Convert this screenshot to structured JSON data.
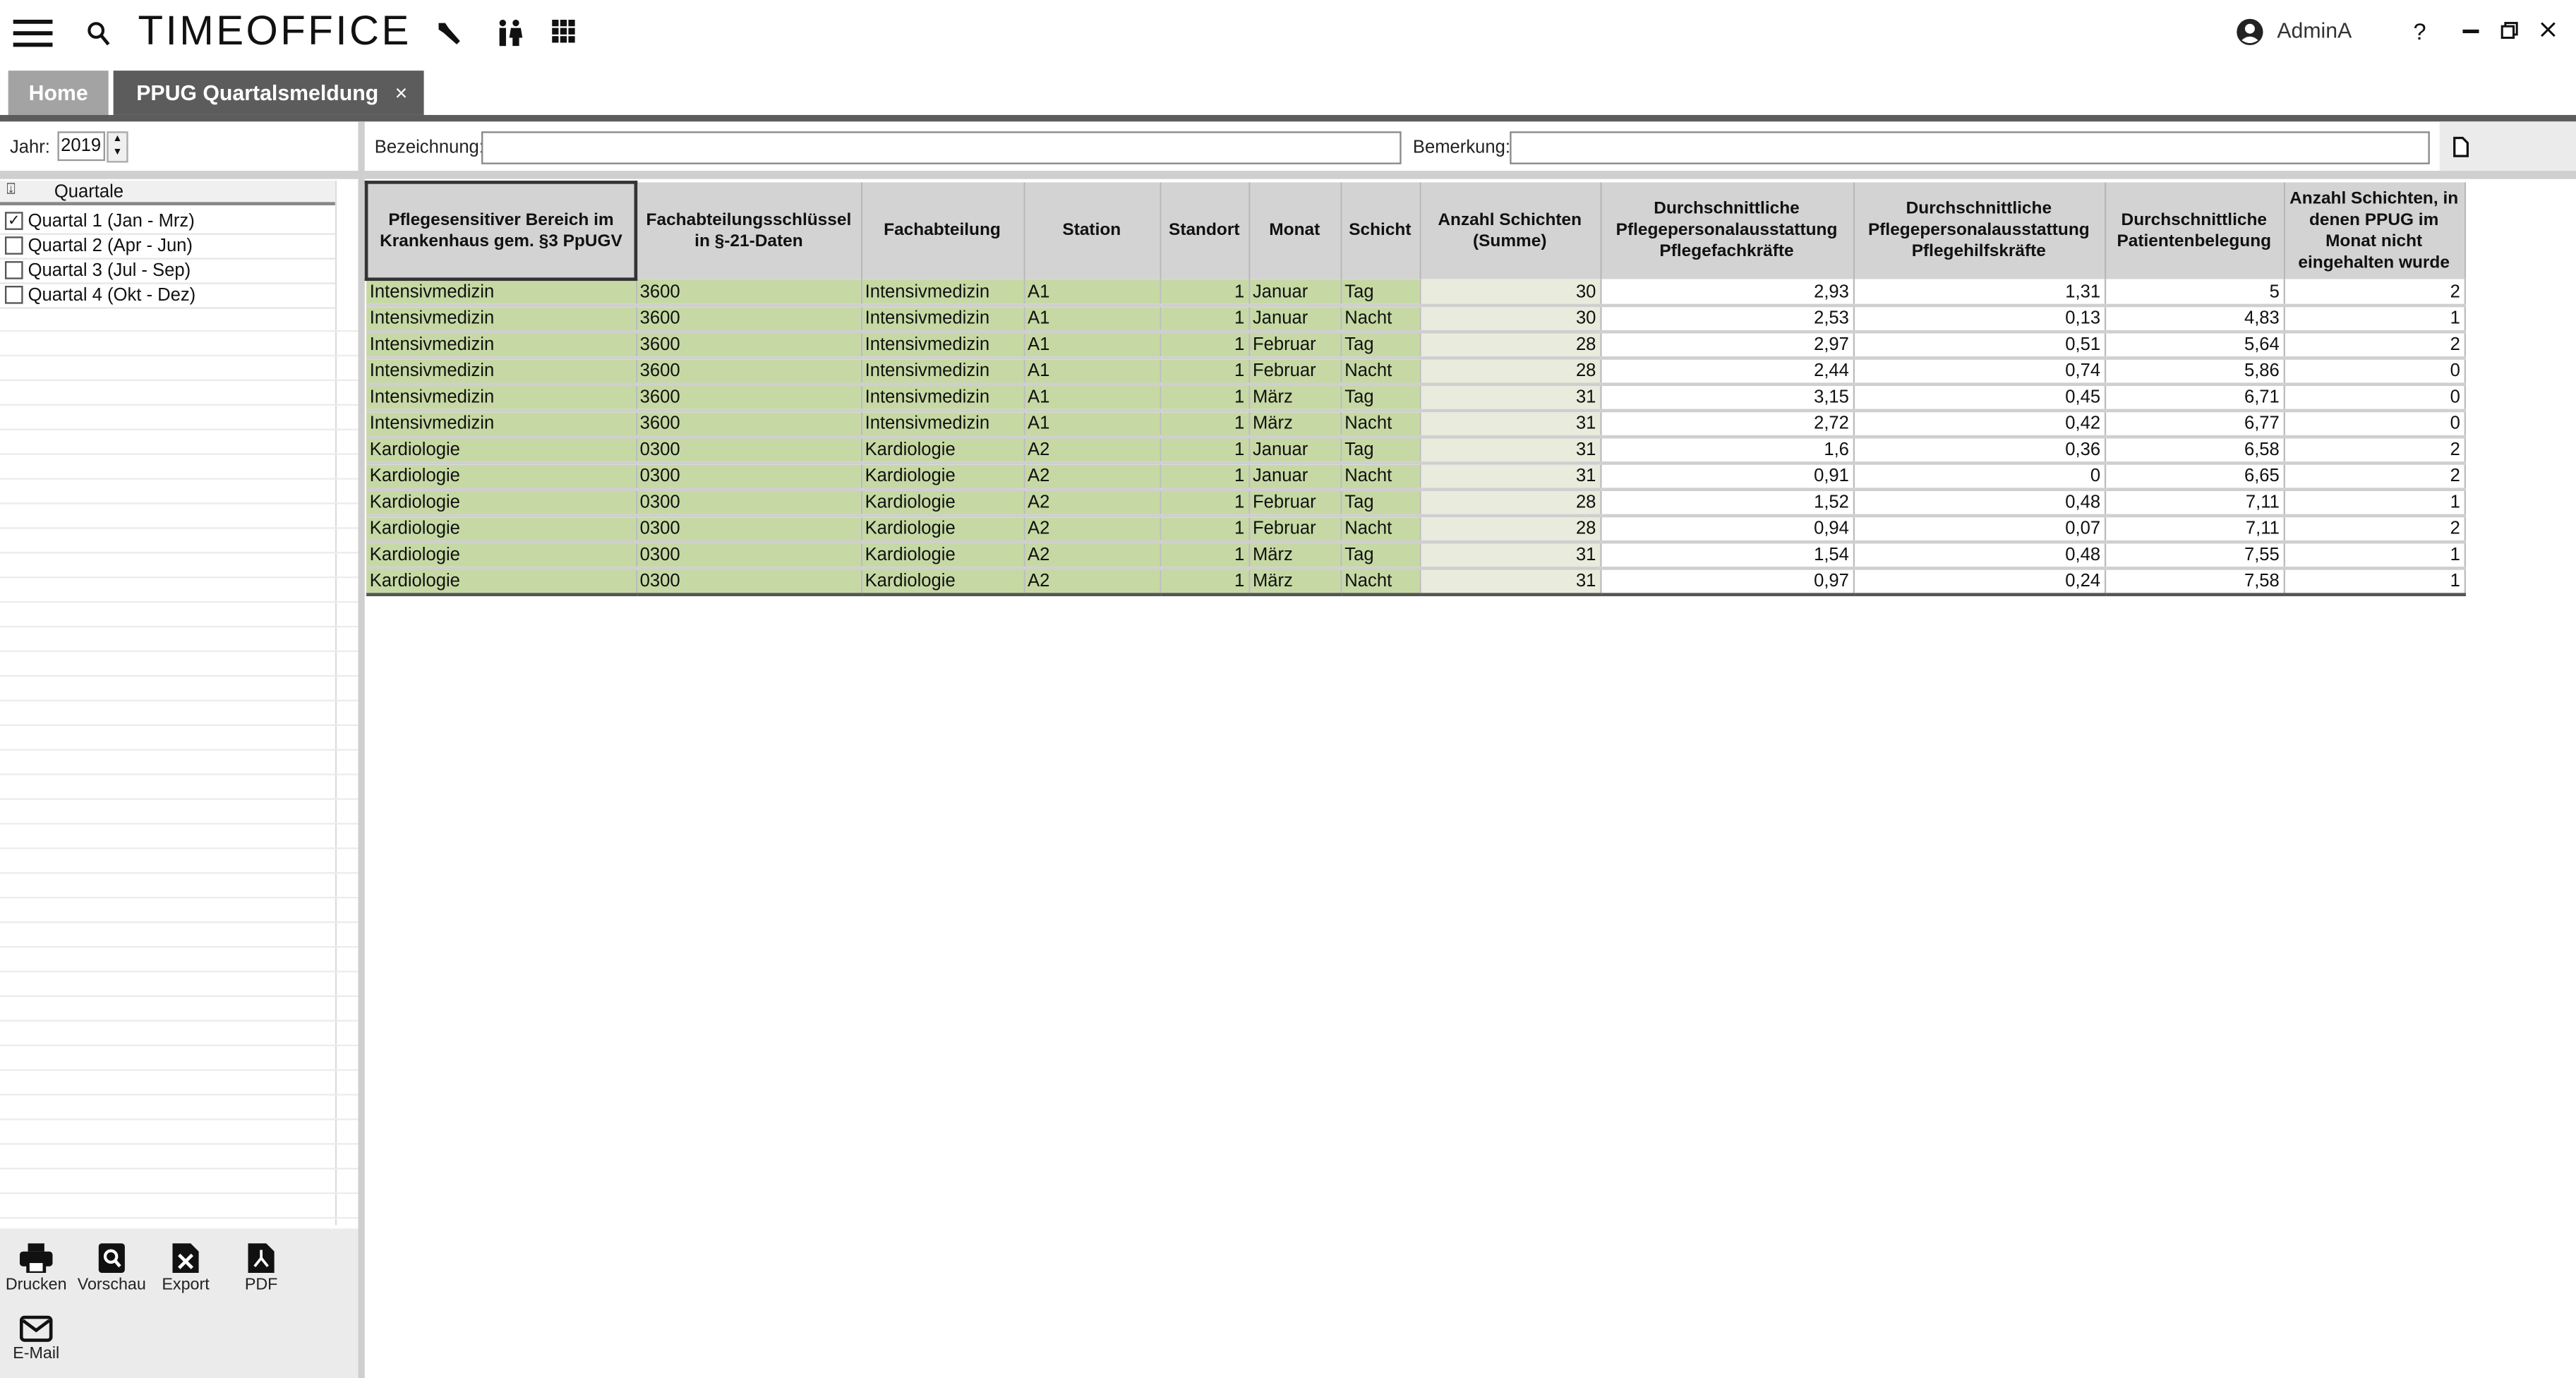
{
  "app": {
    "logo": "TIMEOFFICE",
    "user": "AdminA",
    "help": "?"
  },
  "tabs": [
    {
      "label": "Home"
    },
    {
      "label": "PPUG Quartalsmeldung",
      "close": "×"
    }
  ],
  "filter": {
    "year_label": "Jahr:",
    "year_value": "2019"
  },
  "quartale": {
    "header": "Quartale",
    "items": [
      {
        "label": "Quartal 1 (Jan - Mrz)",
        "checked": true
      },
      {
        "label": "Quartal 2 (Apr - Jun)",
        "checked": false
      },
      {
        "label": "Quartal 3 (Jul - Sep)",
        "checked": false
      },
      {
        "label": "Quartal 4 (Okt - Dez)",
        "checked": false
      }
    ]
  },
  "form": {
    "bezeichnung_label": "Bezeichnung:",
    "bezeichnung_value": "",
    "bemerkung_label": "Bemerkung:",
    "bemerkung_value": ""
  },
  "toolbar": {
    "drucken": "Drucken",
    "vorschau": "Vorschau",
    "export": "Export",
    "pdf": "PDF",
    "email": "E-Mail"
  },
  "table": {
    "columns": [
      "Pflegesensitiver Bereich im Krankenhaus gem. §3 PpUGV",
      "Fachabteilungsschlüssel in §-21-Daten",
      "Fachabteilung",
      "Station",
      "Standort",
      "Monat",
      "Schicht",
      "Anzahl Schichten (Summe)",
      "Durchschnittliche Pflegepersonalausstattung Pflegefachkräfte",
      "Durchschnittliche Pflegepersonalausstattung Pflegehilfskräfte",
      "Durchschnittliche Patientenbelegung",
      "Anzahl Schichten, in denen PPUG im Monat nicht eingehalten wurde"
    ],
    "rows": [
      [
        "Intensivmedizin",
        "3600",
        "Intensivmedizin",
        "A1",
        "1",
        "Januar",
        "Tag",
        "30",
        "2,93",
        "1,31",
        "5",
        "2"
      ],
      [
        "Intensivmedizin",
        "3600",
        "Intensivmedizin",
        "A1",
        "1",
        "Januar",
        "Nacht",
        "30",
        "2,53",
        "0,13",
        "4,83",
        "1"
      ],
      [
        "Intensivmedizin",
        "3600",
        "Intensivmedizin",
        "A1",
        "1",
        "Februar",
        "Tag",
        "28",
        "2,97",
        "0,51",
        "5,64",
        "2"
      ],
      [
        "Intensivmedizin",
        "3600",
        "Intensivmedizin",
        "A1",
        "1",
        "Februar",
        "Nacht",
        "28",
        "2,44",
        "0,74",
        "5,86",
        "0"
      ],
      [
        "Intensivmedizin",
        "3600",
        "Intensivmedizin",
        "A1",
        "1",
        "März",
        "Tag",
        "31",
        "3,15",
        "0,45",
        "6,71",
        "0"
      ],
      [
        "Intensivmedizin",
        "3600",
        "Intensivmedizin",
        "A1",
        "1",
        "März",
        "Nacht",
        "31",
        "2,72",
        "0,42",
        "6,77",
        "0"
      ],
      [
        "Kardiologie",
        "0300",
        "Kardiologie",
        "A2",
        "1",
        "Januar",
        "Tag",
        "31",
        "1,6",
        "0,36",
        "6,58",
        "2"
      ],
      [
        "Kardiologie",
        "0300",
        "Kardiologie",
        "A2",
        "1",
        "Januar",
        "Nacht",
        "31",
        "0,91",
        "0",
        "6,65",
        "2"
      ],
      [
        "Kardiologie",
        "0300",
        "Kardiologie",
        "A2",
        "1",
        "Februar",
        "Tag",
        "28",
        "1,52",
        "0,48",
        "7,11",
        "1"
      ],
      [
        "Kardiologie",
        "0300",
        "Kardiologie",
        "A2",
        "1",
        "Februar",
        "Nacht",
        "28",
        "0,94",
        "0,07",
        "7,11",
        "2"
      ],
      [
        "Kardiologie",
        "0300",
        "Kardiologie",
        "A2",
        "1",
        "März",
        "Tag",
        "31",
        "1,54",
        "0,48",
        "7,55",
        "1"
      ],
      [
        "Kardiologie",
        "0300",
        "Kardiologie",
        "A2",
        "1",
        "März",
        "Nacht",
        "31",
        "0,97",
        "0,24",
        "7,58",
        "1"
      ]
    ]
  },
  "colors": {
    "green": "#c6d9a4",
    "sum_col": "#e9ecdc",
    "header": "#d3d3d3",
    "tab_active": "#5c5c5c",
    "tab_inactive": "#a3a3a3",
    "logo_accent": "#3a9fc9"
  }
}
